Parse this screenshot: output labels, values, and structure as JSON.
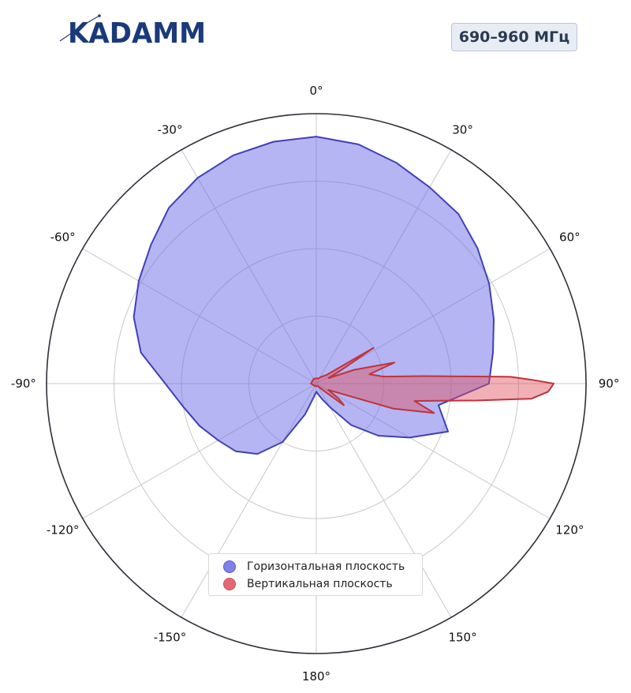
{
  "logo": {
    "text": "KADAMM",
    "color": "#1a3a7a"
  },
  "band_badge": "690–960 МГц",
  "chart_data": {
    "type": "polar",
    "angle_labels": [
      "0°",
      "30°",
      "60°",
      "90°",
      "120°",
      "150°",
      "180°",
      "-150°",
      "-120°",
      "-90°",
      "-60°",
      "-30°"
    ],
    "angle_ticks_deg": [
      0,
      30,
      60,
      90,
      120,
      150,
      180,
      -150,
      -120,
      -90,
      -60,
      -30
    ],
    "r_range": [
      0,
      1
    ],
    "r_grid": [
      0.25,
      0.5,
      0.75
    ],
    "grid": true,
    "legend_position": "bottom-center",
    "series": [
      {
        "name": "Горизонтальная плоскость",
        "color": "#6b6be8",
        "fill_opacity": 0.5,
        "theta_deg": [
          0,
          10,
          20,
          30,
          40,
          50,
          60,
          70,
          80,
          90,
          100,
          110,
          120,
          130,
          140,
          150,
          160,
          170,
          180,
          190,
          200,
          210,
          220,
          230,
          240,
          250,
          260,
          270,
          280,
          290,
          300,
          310,
          320,
          330,
          340,
          350,
          360
        ],
        "r": [
          0.915,
          0.9,
          0.87,
          0.84,
          0.82,
          0.78,
          0.74,
          0.7,
          0.665,
          0.64,
          0.46,
          0.52,
          0.4,
          0.3,
          0.2,
          0.1,
          0.06,
          0.04,
          0.03,
          0.05,
          0.12,
          0.25,
          0.34,
          0.39,
          0.42,
          0.46,
          0.5,
          0.56,
          0.66,
          0.72,
          0.76,
          0.8,
          0.85,
          0.88,
          0.9,
          0.91,
          0.915
        ]
      },
      {
        "name": "Вертикальная плоскость",
        "color": "#e0505a",
        "fill_opacity": 0.45,
        "theta_deg": [
          0,
          20,
          35,
          50,
          55,
          58,
          62,
          66,
          70,
          75,
          80,
          84,
          86,
          88,
          89,
          90,
          91,
          92,
          94,
          96,
          100,
          104,
          108,
          112,
          118,
          124,
          128,
          132,
          140,
          150,
          180,
          210,
          270,
          330,
          360
        ],
        "r": [
          0.02,
          0.02,
          0.03,
          0.05,
          0.1,
          0.25,
          0.1,
          0.05,
          0.15,
          0.3,
          0.2,
          0.25,
          0.4,
          0.72,
          0.8,
          0.88,
          0.87,
          0.86,
          0.8,
          0.6,
          0.37,
          0.45,
          0.3,
          0.1,
          0.05,
          0.1,
          0.13,
          0.05,
          0.02,
          0.01,
          0.01,
          0.01,
          0.02,
          0.02,
          0.02
        ]
      }
    ]
  }
}
